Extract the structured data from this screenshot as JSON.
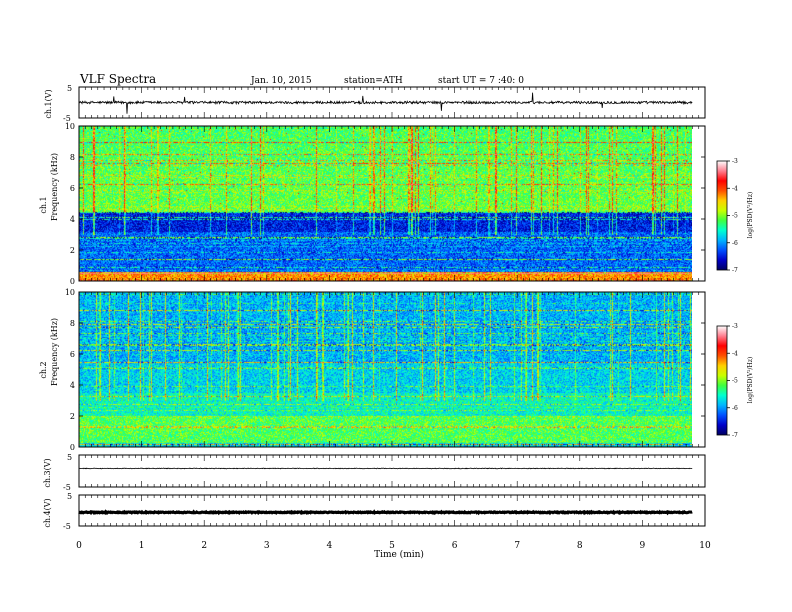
{
  "header": {
    "title": "VLF  Spectra",
    "date": "Jan. 10, 2015",
    "station": "station=ATH",
    "start": "start  UT  =   7 :40: 0"
  },
  "colors": {
    "spectrum_scale": [
      "#000060",
      "#0000c8",
      "#0050ff",
      "#00b4ff",
      "#00ffd0",
      "#40ff40",
      "#c8ff00",
      "#ffd000",
      "#ff5000",
      "#ff0000",
      "#ff8090",
      "#ffffff"
    ]
  },
  "chart_data": [
    {
      "type": "line",
      "name": "ch1-waveform",
      "ylabel": "ch.1(V)",
      "ylim": [
        -5,
        5
      ],
      "yticks": [
        "5",
        "-5"
      ],
      "baseline_v": 0.0,
      "noise_v": 0.4
    },
    {
      "type": "heatmap",
      "name": "ch1-spectrogram",
      "ylabel_top": "ch.1",
      "ylabel": "Frequency (kHz)",
      "ylim": [
        0,
        10
      ],
      "yticks": [
        "0",
        "2",
        "4",
        "6",
        "8",
        "10"
      ],
      "colorbar": {
        "label": "log(PSD(V²/Hz)",
        "range": [
          -7,
          -3
        ],
        "ticks": [
          "-3",
          "-4",
          "-5",
          "-6",
          "-7"
        ]
      },
      "description_bands_khz": [
        [
          0,
          3.2,
          "low-band lines"
        ],
        [
          3.2,
          4.5,
          "deep blue"
        ],
        [
          4.5,
          10,
          "green-cyan broadband"
        ]
      ]
    },
    {
      "type": "heatmap",
      "name": "ch2-spectrogram",
      "ylabel_top": "ch.2",
      "ylabel": "Frequency (kHz)",
      "ylim": [
        0,
        10
      ],
      "yticks": [
        "0",
        "2",
        "4",
        "6",
        "8",
        "10"
      ],
      "colorbar": {
        "label": "log(PSD(V²/Hz)",
        "range": [
          -7,
          -3
        ],
        "ticks": [
          "-3",
          "-4",
          "-5",
          "-6",
          "-7"
        ]
      }
    },
    {
      "type": "line",
      "name": "ch3-waveform",
      "ylabel": "ch.3(V)",
      "ylim": [
        -5,
        5
      ],
      "yticks": [
        "5",
        "-5"
      ],
      "baseline_v": 0.8,
      "noise_v": 0.1
    },
    {
      "type": "line",
      "name": "ch4-waveform",
      "ylabel": "ch.4(V)",
      "ylim": [
        -5,
        5
      ],
      "yticks": [
        "5",
        "-5"
      ],
      "baseline_v": -0.6,
      "noise_v": 0.15
    }
  ],
  "x_axis": {
    "xlabel": "Time  (min)",
    "xlim": [
      0,
      10
    ],
    "data_end": 9.8,
    "ticks": [
      "0",
      "1",
      "2",
      "3",
      "4",
      "5",
      "6",
      "7",
      "8",
      "9",
      "10"
    ]
  }
}
